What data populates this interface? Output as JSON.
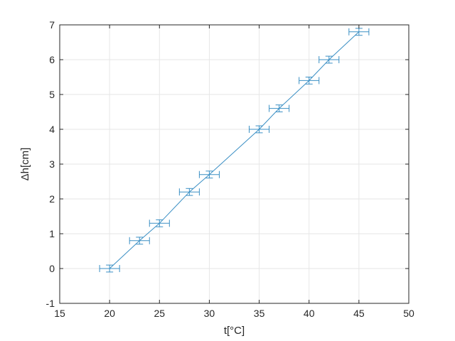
{
  "chart_data": {
    "type": "line",
    "title": "",
    "xlabel": "t[°C]",
    "ylabel": "Δh[cm]",
    "xlim": [
      15,
      50
    ],
    "ylim": [
      -1,
      7
    ],
    "x_ticks": [
      15,
      20,
      25,
      30,
      35,
      40,
      45,
      50
    ],
    "y_ticks": [
      -1,
      0,
      1,
      2,
      3,
      4,
      5,
      6,
      7
    ],
    "grid": true,
    "legend": "none",
    "color": "#3a8fc4",
    "series": [
      {
        "x": [
          20,
          23,
          25,
          28,
          30,
          35,
          37,
          40,
          42,
          45
        ],
        "y": [
          0,
          0.8,
          1.3,
          2.2,
          2.7,
          4.0,
          4.6,
          5.4,
          6.0,
          6.8
        ],
        "x_error": [
          1,
          1,
          1,
          1,
          1,
          1,
          1,
          1,
          1,
          1
        ],
        "y_error": [
          0.1,
          0.1,
          0.1,
          0.1,
          0.1,
          0.1,
          0.1,
          0.1,
          0.1,
          0.1
        ]
      }
    ]
  }
}
